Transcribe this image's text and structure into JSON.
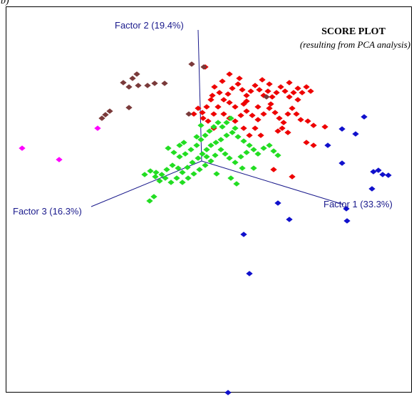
{
  "corner_label": "b)",
  "chart_data": {
    "type": "scatter",
    "projection": "3d",
    "title": "SCORE PLOT",
    "subtitle": "(resulting from PCA analysis)",
    "axes": [
      {
        "id": "f1",
        "label": "Factor 1 (33.3%)"
      },
      {
        "id": "f2",
        "label": "Factor 2 (19.4%)"
      },
      {
        "id": "f3",
        "label": "Factor 3 (16.3%)"
      }
    ],
    "grid": false,
    "legend": "none",
    "colors": {
      "red": "#ee0000",
      "green": "#22dd22",
      "blue": "#1010cc",
      "brown": "#7a3a3a",
      "magenta": "#ff00ff",
      "axis": "#1a1a8c"
    },
    "series": [
      {
        "color": "red",
        "points": [
          [
            301,
            122
          ],
          [
            308,
            130
          ],
          [
            298,
            134
          ],
          [
            296,
            140
          ],
          [
            290,
            150
          ],
          [
            284,
            158
          ],
          [
            278,
            152
          ],
          [
            272,
            160
          ],
          [
            285,
            166
          ],
          [
            292,
            170
          ],
          [
            300,
            160
          ],
          [
            306,
            150
          ],
          [
            314,
            140
          ],
          [
            320,
            132
          ],
          [
            326,
            124
          ],
          [
            334,
            118
          ],
          [
            340,
            126
          ],
          [
            346,
            134
          ],
          [
            352,
            128
          ],
          [
            358,
            120
          ],
          [
            364,
            126
          ],
          [
            370,
            134
          ],
          [
            376,
            128
          ],
          [
            382,
            136
          ],
          [
            388,
            130
          ],
          [
            394,
            122
          ],
          [
            400,
            128
          ],
          [
            406,
            136
          ],
          [
            412,
            130
          ],
          [
            418,
            124
          ],
          [
            424,
            130
          ],
          [
            430,
            122
          ],
          [
            436,
            128
          ],
          [
            314,
            160
          ],
          [
            322,
            166
          ],
          [
            330,
            170
          ],
          [
            338,
            162
          ],
          [
            346,
            156
          ],
          [
            354,
            162
          ],
          [
            362,
            168
          ],
          [
            370,
            160
          ],
          [
            378,
            152
          ],
          [
            386,
            158
          ],
          [
            392,
            166
          ],
          [
            398,
            172
          ],
          [
            404,
            160
          ],
          [
            410,
            152
          ],
          [
            416,
            160
          ],
          [
            422,
            168
          ],
          [
            432,
            170
          ],
          [
            440,
            176
          ],
          [
            456,
            178
          ],
          [
            440,
            204
          ],
          [
            430,
            200
          ],
          [
            404,
            186
          ],
          [
            396,
            180
          ],
          [
            390,
            184
          ],
          [
            366,
            190
          ],
          [
            358,
            180
          ],
          [
            350,
            190
          ],
          [
            342,
            180
          ],
          [
            330,
            150
          ],
          [
            322,
            144
          ],
          [
            342,
            146
          ],
          [
            362,
            150
          ],
          [
            380,
            146
          ],
          [
            336,
            110
          ],
          [
            312,
            114
          ],
          [
            322,
            104
          ],
          [
            288,
            94
          ],
          [
            410,
            248
          ],
          [
            384,
            238
          ],
          [
            346,
            142
          ],
          [
            300,
            180
          ],
          [
            368,
            112
          ],
          [
            378,
            118
          ],
          [
            406,
            116
          ],
          [
            418,
            140
          ]
        ]
      },
      {
        "color": "green",
        "points": [
          [
            203,
            245
          ],
          [
            211,
            240
          ],
          [
            219,
            242
          ],
          [
            227,
            245
          ],
          [
            234,
            238
          ],
          [
            242,
            232
          ],
          [
            250,
            236
          ],
          [
            256,
            242
          ],
          [
            263,
            235
          ],
          [
            270,
            228
          ],
          [
            278,
            222
          ],
          [
            284,
            216
          ],
          [
            290,
            210
          ],
          [
            296,
            204
          ],
          [
            303,
            200
          ],
          [
            310,
            196
          ],
          [
            318,
            190
          ],
          [
            326,
            186
          ],
          [
            334,
            192
          ],
          [
            342,
            198
          ],
          [
            350,
            204
          ],
          [
            356,
            210
          ],
          [
            362,
            216
          ],
          [
            370,
            208
          ],
          [
            378,
            204
          ],
          [
            384,
            212
          ],
          [
            390,
            218
          ],
          [
            236,
            208
          ],
          [
            244,
            214
          ],
          [
            252,
            220
          ],
          [
            260,
            216
          ],
          [
            268,
            210
          ],
          [
            276,
            204
          ],
          [
            282,
            196
          ],
          [
            288,
            190
          ],
          [
            294,
            184
          ],
          [
            300,
            178
          ],
          [
            306,
            172
          ],
          [
            312,
            178
          ],
          [
            318,
            172
          ],
          [
            324,
            166
          ],
          [
            310,
            210
          ],
          [
            316,
            216
          ],
          [
            322,
            222
          ],
          [
            330,
            228
          ],
          [
            338,
            220
          ],
          [
            346,
            214
          ],
          [
            302,
            218
          ],
          [
            296,
            226
          ],
          [
            288,
            232
          ],
          [
            280,
            238
          ],
          [
            272,
            244
          ],
          [
            264,
            250
          ],
          [
            256,
            256
          ],
          [
            248,
            250
          ],
          [
            240,
            256
          ],
          [
            232,
            250
          ],
          [
            224,
            254
          ],
          [
            218,
            248
          ],
          [
            210,
            282
          ],
          [
            216,
            276
          ],
          [
            324,
            250
          ],
          [
            332,
            258
          ],
          [
            330,
            180
          ],
          [
            290,
            220
          ],
          [
            356,
            236
          ],
          [
            258,
            200
          ],
          [
            282,
            176
          ],
          [
            304,
            244
          ],
          [
            276,
            192
          ],
          [
            340,
            236
          ],
          [
            252,
            204
          ]
        ]
      },
      {
        "color": "blue",
        "points": [
          [
            511,
            164
          ],
          [
            480,
            181
          ],
          [
            499,
            188
          ],
          [
            460,
            204
          ],
          [
            480,
            229
          ],
          [
            524,
            241
          ],
          [
            531,
            239
          ],
          [
            537,
            245
          ],
          [
            545,
            246
          ],
          [
            522,
            265
          ],
          [
            390,
            285
          ],
          [
            486,
            293
          ],
          [
            406,
            308
          ],
          [
            487,
            310
          ],
          [
            342,
            329
          ],
          [
            350,
            384
          ],
          [
            320,
            551
          ]
        ]
      },
      {
        "color": "brown",
        "points": [
          [
            269,
            90
          ],
          [
            286,
            94
          ],
          [
            192,
            104
          ],
          [
            186,
            110
          ],
          [
            173,
            116
          ],
          [
            181,
            122
          ],
          [
            194,
            120
          ],
          [
            207,
            120
          ],
          [
            217,
            117
          ],
          [
            231,
            117
          ],
          [
            154,
            156
          ],
          [
            148,
            161
          ],
          [
            143,
            166
          ],
          [
            181,
            151
          ],
          [
            374,
            136
          ],
          [
            265,
            160
          ]
        ]
      },
      {
        "color": "magenta",
        "points": [
          [
            137,
            180
          ],
          [
            31,
            208
          ],
          [
            83,
            224
          ]
        ]
      }
    ]
  }
}
